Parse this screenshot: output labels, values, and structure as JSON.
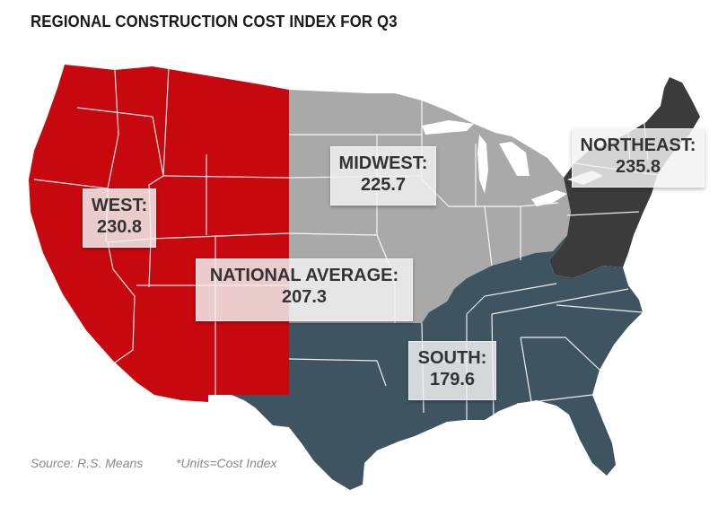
{
  "title": "REGIONAL CONSTRUCTION COST INDEX FOR Q3",
  "regions": {
    "west": {
      "label": "WEST:",
      "value": "230.8",
      "color": "#c8080f"
    },
    "midwest": {
      "label": "MIDWEST:",
      "value": "225.7",
      "color": "#a9a9a9"
    },
    "northeast": {
      "label": "NORTHEAST:",
      "value": "235.8",
      "color": "#3b3b3b"
    },
    "south": {
      "label": "SOUTH:",
      "value": "179.6",
      "color": "#3e5561"
    }
  },
  "national": {
    "label": "NATIONAL AVERAGE:",
    "value": "207.3"
  },
  "source": "Source: R.S. Means",
  "units": "*Units=Cost Index"
}
